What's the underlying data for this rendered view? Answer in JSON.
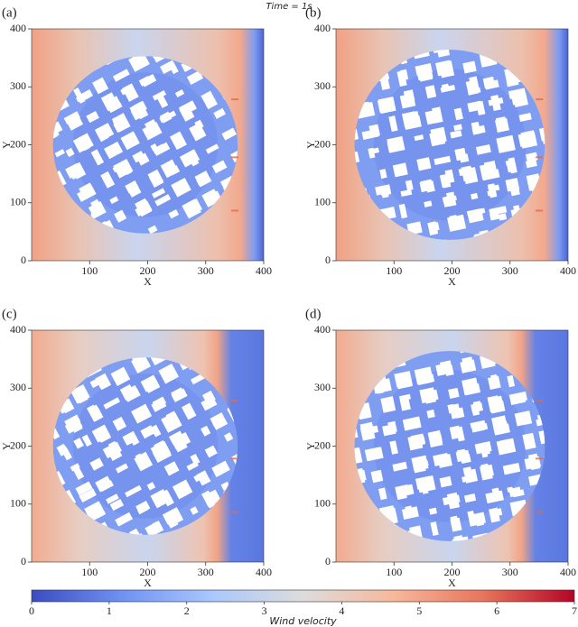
{
  "chart_data": {
    "type": "heatmap",
    "title": "Time = 1s",
    "panels": [
      {
        "label": "(a)"
      },
      {
        "label": "(b)"
      },
      {
        "label": "(c)"
      },
      {
        "label": "(d)"
      }
    ],
    "xlabel": "X",
    "ylabel": "Y",
    "xlim": [
      0,
      400
    ],
    "ylim": [
      0,
      400
    ],
    "xticks": [
      100,
      200,
      300,
      400
    ],
    "yticks": [
      0,
      100,
      200,
      300,
      400
    ],
    "colorbar": {
      "label": "Wind velocity",
      "lim": [
        0,
        7
      ],
      "ticks": [
        0,
        1,
        2,
        3,
        4,
        5,
        6,
        7
      ],
      "colors": [
        "#3b4cc0",
        "#6f92f3",
        "#aac7fd",
        "#dddcdc",
        "#f7b89c",
        "#e7745b",
        "#b40426"
      ]
    }
  }
}
